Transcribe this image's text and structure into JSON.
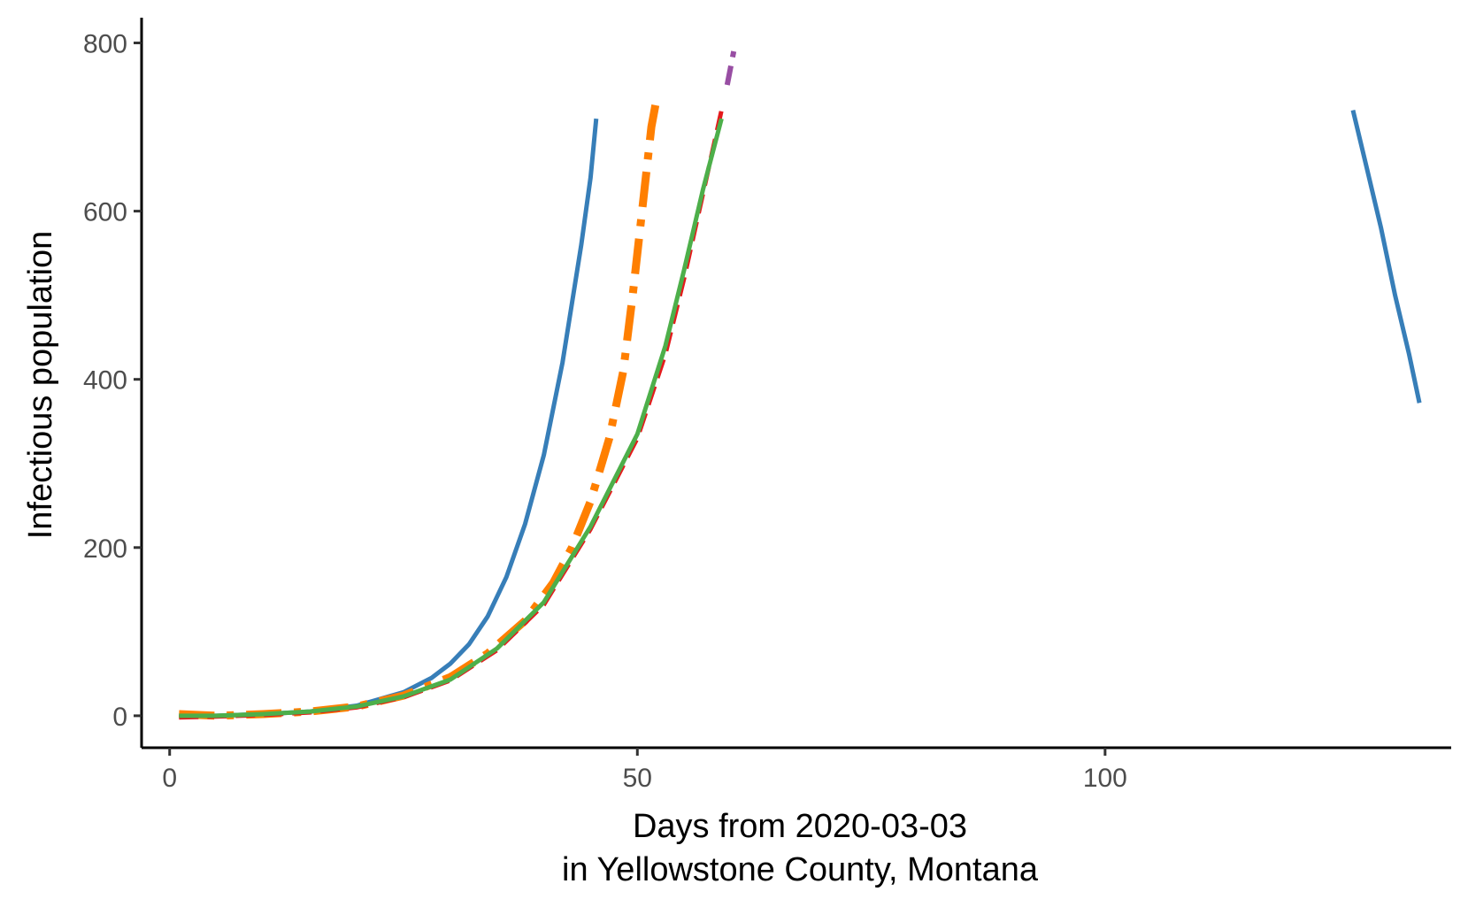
{
  "chart_data": {
    "type": "line",
    "title": "",
    "xlabel_line1": "Days from 2020-03-03",
    "xlabel_line2": "in Yellowstone County, Montana",
    "ylabel": "Infectious population",
    "xlim": [
      -3,
      137
    ],
    "ylim": [
      -38,
      830
    ],
    "x_ticks": [
      0,
      50,
      100
    ],
    "y_ticks": [
      0,
      200,
      400,
      600,
      800
    ],
    "grid": false,
    "legend": "none",
    "series": [
      {
        "color": "#377eb8",
        "dash": "solid",
        "width": 5,
        "segments": [
          [
            [
              1,
              0
            ],
            [
              5,
              0
            ],
            [
              10,
              2
            ],
            [
              15,
              5
            ],
            [
              20,
              12
            ],
            [
              25,
              28
            ],
            [
              28,
              45
            ],
            [
              30,
              62
            ],
            [
              32,
              85
            ],
            [
              34,
              118
            ],
            [
              36,
              165
            ],
            [
              38,
              228
            ],
            [
              40,
              310
            ],
            [
              42,
              420
            ],
            [
              44,
              560
            ],
            [
              45,
              640
            ],
            [
              45.6,
              710
            ]
          ],
          [
            [
              126.5,
              720
            ],
            [
              128,
              650
            ],
            [
              129.5,
              580
            ],
            [
              131,
              500
            ],
            [
              132.5,
              430
            ],
            [
              133.6,
              372
            ]
          ]
        ]
      },
      {
        "color": "#ff7f00",
        "dash": "dashdot",
        "width": 9,
        "segments": [
          [
            [
              1,
              2
            ],
            [
              5,
              0
            ],
            [
              10,
              2
            ],
            [
              15,
              5
            ],
            [
              20,
              11
            ],
            [
              25,
              24
            ],
            [
              30,
              46
            ],
            [
              34,
              74
            ],
            [
              38,
              113
            ],
            [
              41,
              158
            ],
            [
              43,
              200
            ],
            [
              45,
              255
            ],
            [
              47,
              330
            ],
            [
              48.5,
              410
            ],
            [
              49.5,
              500
            ],
            [
              50.5,
              600
            ],
            [
              51.5,
              700
            ],
            [
              52,
              730
            ]
          ]
        ]
      },
      {
        "color": "#e41a1c",
        "dash": "dashed",
        "width": 5,
        "segments": [
          [
            [
              1,
              -2
            ],
            [
              5,
              -1
            ],
            [
              10,
              1
            ],
            [
              15,
              4
            ],
            [
              20,
              10
            ],
            [
              25,
              22
            ],
            [
              30,
              42
            ],
            [
              35,
              78
            ],
            [
              40,
              132
            ],
            [
              45,
              222
            ],
            [
              50,
              330
            ],
            [
              53,
              430
            ],
            [
              55,
              520
            ],
            [
              57,
              620
            ],
            [
              59,
              720
            ]
          ]
        ]
      },
      {
        "color": "#984ea3",
        "dash": "dashed",
        "width": 6,
        "segments": [
          [
            [
              59.6,
              750
            ],
            [
              60.3,
              790
            ]
          ]
        ]
      },
      {
        "color": "#4daf4a",
        "dash": "solid",
        "width": 5,
        "segments": [
          [
            [
              1,
              0
            ],
            [
              5,
              0
            ],
            [
              10,
              2
            ],
            [
              15,
              5
            ],
            [
              20,
              11
            ],
            [
              25,
              23
            ],
            [
              30,
              43
            ],
            [
              35,
              80
            ],
            [
              40,
              135
            ],
            [
              45,
              225
            ],
            [
              50,
              335
            ],
            [
              53,
              440
            ],
            [
              55,
              530
            ],
            [
              57,
              625
            ],
            [
              59,
              710
            ]
          ]
        ]
      }
    ]
  }
}
